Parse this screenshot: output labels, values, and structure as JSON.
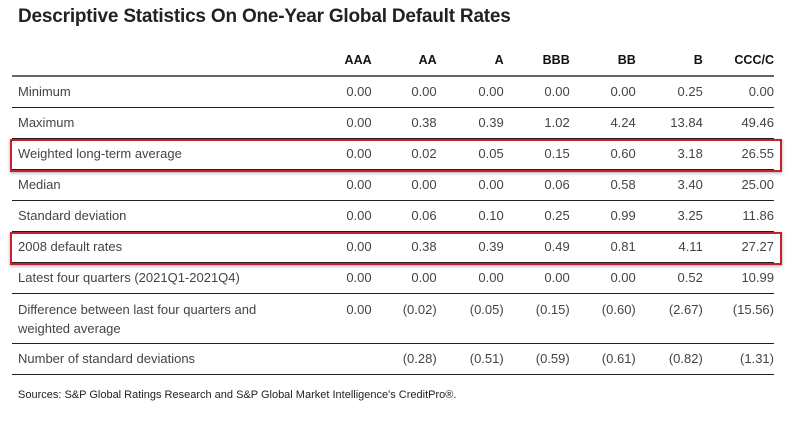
{
  "title": "Descriptive Statistics On One-Year Global Default Rates",
  "table": {
    "columns": [
      "",
      "AAA",
      "AA",
      "A",
      "BBB",
      "BB",
      "B",
      "CCC/C"
    ],
    "rows": [
      {
        "label": "Minimum",
        "values": [
          "0.00",
          "0.00",
          "0.00",
          "0.00",
          "0.00",
          "0.25",
          "0.00"
        ],
        "highlighted": false
      },
      {
        "label": "Maximum",
        "values": [
          "0.00",
          "0.38",
          "0.39",
          "1.02",
          "4.24",
          "13.84",
          "49.46"
        ],
        "highlighted": false
      },
      {
        "label": "Weighted long-term average",
        "values": [
          "0.00",
          "0.02",
          "0.05",
          "0.15",
          "0.60",
          "3.18",
          "26.55"
        ],
        "highlighted": true
      },
      {
        "label": "Median",
        "values": [
          "0.00",
          "0.00",
          "0.00",
          "0.06",
          "0.58",
          "3.40",
          "25.00"
        ],
        "highlighted": false
      },
      {
        "label": "Standard deviation",
        "values": [
          "0.00",
          "0.06",
          "0.10",
          "0.25",
          "0.99",
          "3.25",
          "11.86"
        ],
        "highlighted": false
      },
      {
        "label": "2008 default rates",
        "values": [
          "0.00",
          "0.38",
          "0.39",
          "0.49",
          "0.81",
          "4.11",
          "27.27"
        ],
        "highlighted": true
      },
      {
        "label": "Latest four quarters (2021Q1-2021Q4)",
        "values": [
          "0.00",
          "0.00",
          "0.00",
          "0.00",
          "0.00",
          "0.52",
          "10.99"
        ],
        "highlighted": false
      },
      {
        "label": "Difference between last four quarters and weighted average",
        "values": [
          "0.00",
          "(0.02)",
          "(0.05)",
          "(0.15)",
          "(0.60)",
          "(2.67)",
          "(15.56)"
        ],
        "highlighted": false
      },
      {
        "label": "Number of standard deviations",
        "values": [
          "",
          "(0.28)",
          "(0.51)",
          "(0.59)",
          "(0.61)",
          "(0.82)",
          "(1.31)"
        ],
        "highlighted": false
      }
    ]
  },
  "highlight_color": "#c8202a",
  "source": "Sources: S&P Global Ratings Research and S&P Global Market Intelligence's CreditPro®."
}
